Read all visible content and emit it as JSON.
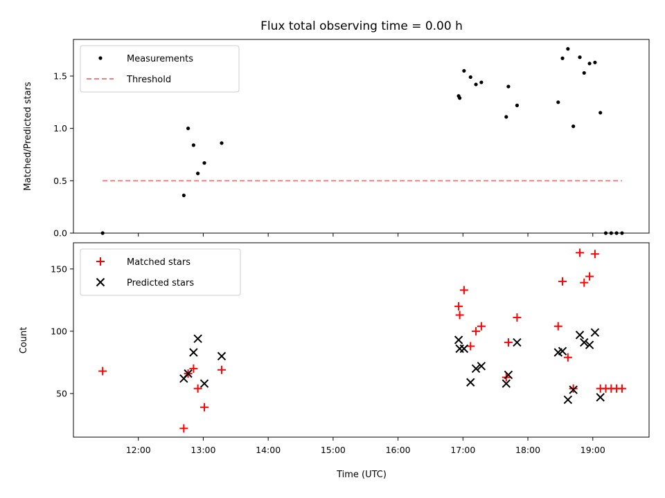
{
  "chart_data": [
    {
      "type": "scatter",
      "title": "Flux total observing time = 0.00 h",
      "xlabel": "",
      "ylabel": "Matched/Predicted stars",
      "xlim": [
        "11:00",
        "19:52"
      ],
      "ylim": [
        0,
        1.85
      ],
      "yticks": [
        "0.0",
        "0.5",
        "1.0",
        "1.5"
      ],
      "legend": "upper left",
      "series": [
        {
          "name": "Measurements",
          "marker": "dot",
          "color": "#000000",
          "x": [
            "11:27",
            "12:42",
            "12:46",
            "12:51",
            "12:55",
            "13:01",
            "13:17",
            "16:56",
            "16:57",
            "17:01",
            "17:07",
            "17:12",
            "17:17",
            "17:40",
            "17:42",
            "17:50",
            "18:28",
            "18:32",
            "18:37",
            "18:42",
            "18:48",
            "18:52",
            "18:57",
            "19:02",
            "19:07",
            "19:12",
            "19:17",
            "19:22",
            "19:27"
          ],
          "y": [
            0.0,
            0.36,
            1.0,
            0.84,
            0.57,
            0.67,
            0.86,
            1.31,
            1.29,
            1.55,
            1.49,
            1.42,
            1.44,
            1.11,
            1.4,
            1.22,
            1.25,
            1.67,
            1.76,
            1.02,
            1.68,
            1.53,
            1.62,
            1.63,
            1.15,
            0.0,
            0.0,
            0.0,
            0.0
          ]
        },
        {
          "name": "Threshold",
          "line": "dashed",
          "color": "#f08080",
          "x": [
            "11:27",
            "19:27"
          ],
          "y": [
            0.5,
            0.5
          ]
        }
      ]
    },
    {
      "type": "scatter",
      "title": "",
      "xlabel": "Time (UTC)",
      "ylabel": "Count",
      "xlim": [
        "11:00",
        "19:52"
      ],
      "ylim": [
        15,
        171
      ],
      "yticks": [
        "50",
        "100",
        "150"
      ],
      "xticks": [
        "12:00",
        "13:00",
        "14:00",
        "15:00",
        "16:00",
        "17:00",
        "18:00",
        "19:00"
      ],
      "legend": "upper left",
      "series": [
        {
          "name": "Matched stars",
          "marker": "plus",
          "color": "#ff0000",
          "x": [
            "11:27",
            "12:42",
            "12:46",
            "12:51",
            "12:55",
            "13:01",
            "13:17",
            "16:56",
            "16:57",
            "17:01",
            "17:07",
            "17:12",
            "17:17",
            "17:40",
            "17:42",
            "17:50",
            "18:28",
            "18:32",
            "18:37",
            "18:42",
            "18:48",
            "18:52",
            "18:57",
            "19:02",
            "19:07",
            "19:12",
            "19:17",
            "19:22",
            "19:27"
          ],
          "y": [
            68,
            22,
            66,
            70,
            54,
            39,
            69,
            120,
            113,
            133,
            88,
            100,
            104,
            63,
            91,
            111,
            104,
            140,
            79,
            54,
            163,
            139,
            144,
            162,
            54,
            54,
            54,
            54,
            54
          ]
        },
        {
          "name": "Predicted stars",
          "marker": "x",
          "color": "#000000",
          "x": [
            "12:42",
            "12:46",
            "12:51",
            "12:55",
            "13:01",
            "13:17",
            "16:56",
            "16:57",
            "17:01",
            "17:07",
            "17:12",
            "17:17",
            "17:40",
            "17:42",
            "17:50",
            "18:28",
            "18:32",
            "18:37",
            "18:42",
            "18:48",
            "18:52",
            "18:57",
            "19:02",
            "19:07"
          ],
          "y": [
            62,
            66,
            83,
            94,
            58,
            80,
            93,
            86,
            86,
            59,
            70,
            72,
            58,
            65,
            91,
            83,
            84,
            45,
            53,
            97,
            91,
            89,
            99,
            47
          ]
        }
      ]
    }
  ]
}
